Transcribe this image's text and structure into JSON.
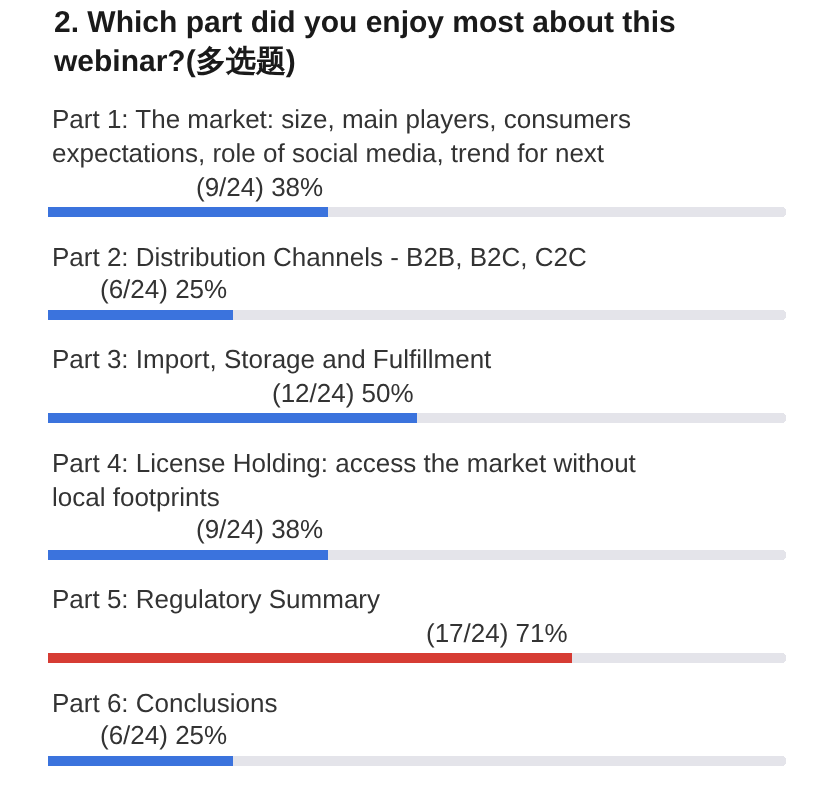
{
  "chart_data": {
    "type": "bar",
    "orientation": "horizontal",
    "stacked": true,
    "title": "2. Which part did you enjoy most about this webinar?(多选题)",
    "categories": [
      "Part 1: The market: size, main players, consumers expectations, role of social media, trend for next",
      "Part 2: Distribution Channels - B2B, B2C, C2C",
      "Part 3: Import, Storage and Fulfillment",
      "Part 4: License Holding: access the market without local footprints",
      "Part 5: Regulatory Summary",
      "Part 6: Conclusions"
    ],
    "series": [
      {
        "colors": [
          "#3b73dd",
          "#3b73dd",
          "#3b73dd",
          "#3b73dd",
          "#d63c34",
          "#3b73dd"
        ],
        "values": [
          38,
          25,
          50,
          38,
          71,
          25
        ],
        "value_labels": [
          "(9/24) 38%",
          "(6/24) 25%",
          "(12/24) 50%",
          "(9/24) 38%",
          "(17/24) 71%",
          "(6/24) 25%"
        ]
      },
      {
        "color": "#e4e4ea",
        "values": [
          62,
          75,
          50,
          62,
          29,
          75
        ]
      }
    ],
    "tick_labels": "y"
  }
}
